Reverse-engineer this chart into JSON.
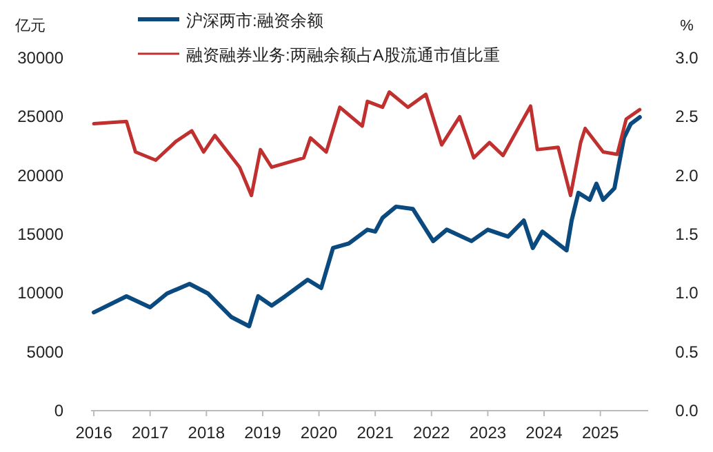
{
  "chart_data": {
    "type": "line",
    "ylabel": "亿元",
    "y2label": "%",
    "legend": "top left",
    "xlim": [
      2015.95,
      2025.85
    ],
    "xticks": [
      2016,
      2017,
      2018,
      2019,
      2020,
      2021,
      2022,
      2023,
      2024,
      2025
    ],
    "ylim": [
      0,
      30000
    ],
    "yticks": [
      0,
      5000,
      10000,
      15000,
      20000,
      25000,
      30000
    ],
    "y2lim": [
      0,
      3
    ],
    "y2ticks": [
      {
        "value": 0,
        "label": "0.0"
      },
      {
        "value": 0.5,
        "label": "0.5"
      },
      {
        "value": 1,
        "label": "1.0"
      },
      {
        "value": 1.5,
        "label": "1.5"
      },
      {
        "value": 2,
        "label": "2.0"
      },
      {
        "value": 2.5,
        "label": "2.5"
      },
      {
        "value": 3,
        "label": "3.0"
      }
    ],
    "series": [
      {
        "name": "沪深两市:融资余额",
        "color": "#0b4a7e",
        "x": [
          2016.0,
          2016.58,
          2017.0,
          2017.3,
          2017.7,
          2018.03,
          2018.44,
          2018.76,
          2018.92,
          2019.16,
          2019.4,
          2019.8,
          2020.04,
          2020.25,
          2020.53,
          2020.86,
          2021.0,
          2021.13,
          2021.37,
          2021.67,
          2022.03,
          2022.27,
          2022.71,
          2023.0,
          2023.36,
          2023.64,
          2023.8,
          2023.97,
          2024.4,
          2024.49,
          2024.61,
          2024.81,
          2024.93,
          2025.05,
          2025.25,
          2025.42,
          2025.54,
          2025.7
        ],
        "values": [
          8360,
          9730,
          8790,
          9960,
          10780,
          9960,
          7970,
          7180,
          9730,
          8940,
          9730,
          11130,
          10430,
          13830,
          14220,
          15390,
          15230,
          16400,
          17350,
          17150,
          14420,
          15390,
          14420,
          15390,
          14800,
          16170,
          13830,
          15230,
          13630,
          16170,
          18520,
          17930,
          19300,
          17930,
          18910,
          23200,
          24380,
          24960
        ]
      },
      {
        "name": "融资融券业务:两融余额占A股流通市值比重",
        "color": "#c0302f",
        "axis": "y2",
        "x": [
          2016.0,
          2016.58,
          2016.74,
          2017.1,
          2017.46,
          2017.74,
          2017.95,
          2018.15,
          2018.59,
          2018.8,
          2018.96,
          2019.16,
          2019.73,
          2019.85,
          2020.13,
          2020.37,
          2020.77,
          2020.86,
          2021.13,
          2021.25,
          2021.58,
          2021.9,
          2022.18,
          2022.5,
          2022.75,
          2023.03,
          2023.27,
          2023.76,
          2023.88,
          2024.25,
          2024.47,
          2024.65,
          2024.73,
          2025.05,
          2025.3,
          2025.46,
          2025.7
        ],
        "values": [
          2.44,
          2.46,
          2.2,
          2.13,
          2.29,
          2.38,
          2.2,
          2.34,
          2.07,
          1.83,
          2.22,
          2.07,
          2.15,
          2.32,
          2.2,
          2.58,
          2.42,
          2.63,
          2.58,
          2.71,
          2.58,
          2.69,
          2.26,
          2.5,
          2.15,
          2.28,
          2.17,
          2.59,
          2.22,
          2.24,
          1.83,
          2.28,
          2.4,
          2.2,
          2.18,
          2.48,
          2.56
        ]
      }
    ]
  }
}
